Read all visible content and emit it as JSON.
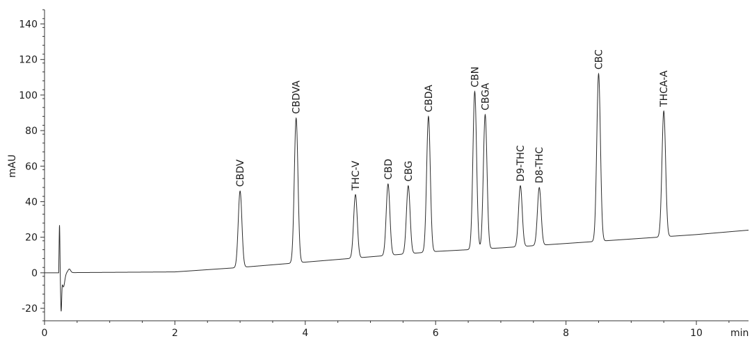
{
  "chart_data": {
    "type": "line",
    "title": "",
    "xlabel": "min",
    "ylabel": "mAU",
    "xlim": [
      0,
      10.8
    ],
    "ylim": [
      -27,
      148
    ],
    "x_ticks": [
      0,
      2,
      4,
      6,
      8,
      10
    ],
    "x_tick_labels": [
      "0",
      "2",
      "4",
      "6",
      "8",
      "10"
    ],
    "y_ticks": [
      -20,
      0,
      20,
      40,
      60,
      80,
      100,
      120,
      140
    ],
    "y_tick_labels": [
      "-20",
      "0",
      "20",
      "40",
      "60",
      "80",
      "100",
      "120",
      "140"
    ],
    "grid": false,
    "legend": "none",
    "line_color": "#2b2b2b",
    "baseline": [
      [
        0,
        0
      ],
      [
        2,
        0.5
      ],
      [
        3,
        3
      ],
      [
        4,
        6
      ],
      [
        5,
        9
      ],
      [
        6,
        12
      ],
      [
        7,
        14
      ],
      [
        8,
        16.5
      ],
      [
        9,
        19
      ],
      [
        10,
        21.5
      ],
      [
        10.8,
        24
      ]
    ],
    "void_peak": {
      "rt": 0.23,
      "max": 27,
      "min": -20
    },
    "peaks": [
      {
        "name": "CBDV",
        "rt": 3.0,
        "height": 46
      },
      {
        "name": "CBDVA",
        "rt": 3.86,
        "height": 87
      },
      {
        "name": "THC-V",
        "rt": 4.77,
        "height": 44
      },
      {
        "name": "CBD",
        "rt": 5.27,
        "height": 50
      },
      {
        "name": "CBG",
        "rt": 5.58,
        "height": 49
      },
      {
        "name": "CBDA",
        "rt": 5.89,
        "height": 88
      },
      {
        "name": "CBN",
        "rt": 6.6,
        "height": 102
      },
      {
        "name": "CBGA",
        "rt": 6.76,
        "height": 89
      },
      {
        "name": "D9-THC",
        "rt": 7.3,
        "height": 49
      },
      {
        "name": "D8-THC",
        "rt": 7.59,
        "height": 48
      },
      {
        "name": "CBC",
        "rt": 8.5,
        "height": 112
      },
      {
        "name": "THCA-A",
        "rt": 9.5,
        "height": 91
      }
    ]
  }
}
